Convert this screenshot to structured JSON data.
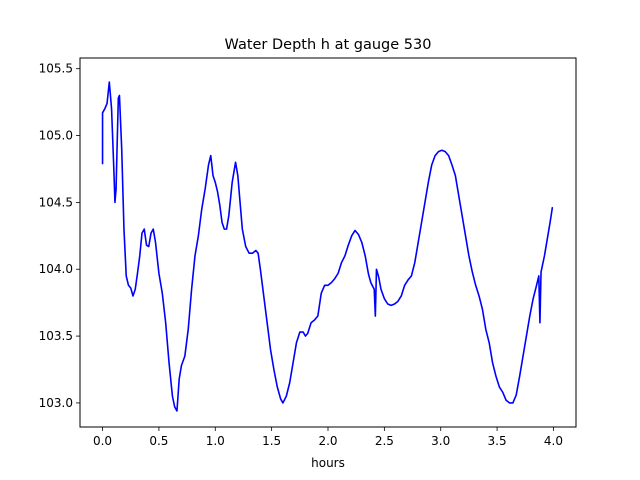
{
  "chart_data": {
    "type": "line",
    "title": "Water Depth h at gauge 530",
    "xlabel": "hours",
    "ylabel": "",
    "xlim": [
      -0.2,
      4.2
    ],
    "ylim": [
      102.82,
      105.58
    ],
    "grid": false,
    "x_ticks": [
      {
        "value": 0.0,
        "label": "0.0"
      },
      {
        "value": 0.5,
        "label": "0.5"
      },
      {
        "value": 1.0,
        "label": "1.0"
      },
      {
        "value": 1.5,
        "label": "1.5"
      },
      {
        "value": 2.0,
        "label": "2.0"
      },
      {
        "value": 2.5,
        "label": "2.5"
      },
      {
        "value": 3.0,
        "label": "3.0"
      },
      {
        "value": 3.5,
        "label": "3.5"
      },
      {
        "value": 4.0,
        "label": "4.0"
      }
    ],
    "y_ticks": [
      {
        "value": 103.0,
        "label": "103.0"
      },
      {
        "value": 103.5,
        "label": "103.5"
      },
      {
        "value": 104.0,
        "label": "104.0"
      },
      {
        "value": 104.5,
        "label": "104.5"
      },
      {
        "value": 105.0,
        "label": "105.0"
      },
      {
        "value": 105.5,
        "label": "105.5"
      }
    ],
    "series": [
      {
        "color": "#0000ff",
        "points": [
          [
            0.0,
            104.79
          ],
          [
            0.0,
            105.17
          ],
          [
            0.02,
            105.2
          ],
          [
            0.04,
            105.24
          ],
          [
            0.06,
            105.4
          ],
          [
            0.08,
            105.2
          ],
          [
            0.1,
            104.75
          ],
          [
            0.11,
            104.5
          ],
          [
            0.12,
            104.6
          ],
          [
            0.13,
            104.95
          ],
          [
            0.14,
            105.28
          ],
          [
            0.15,
            105.3
          ],
          [
            0.17,
            104.9
          ],
          [
            0.19,
            104.3
          ],
          [
            0.21,
            103.95
          ],
          [
            0.23,
            103.88
          ],
          [
            0.25,
            103.86
          ],
          [
            0.27,
            103.8
          ],
          [
            0.29,
            103.85
          ],
          [
            0.31,
            103.97
          ],
          [
            0.33,
            104.1
          ],
          [
            0.35,
            104.27
          ],
          [
            0.37,
            104.3
          ],
          [
            0.39,
            104.18
          ],
          [
            0.41,
            104.17
          ],
          [
            0.43,
            104.27
          ],
          [
            0.45,
            104.3
          ],
          [
            0.47,
            104.2
          ],
          [
            0.5,
            103.97
          ],
          [
            0.53,
            103.82
          ],
          [
            0.56,
            103.6
          ],
          [
            0.59,
            103.3
          ],
          [
            0.62,
            103.05
          ],
          [
            0.64,
            102.97
          ],
          [
            0.66,
            102.94
          ],
          [
            0.68,
            103.18
          ],
          [
            0.7,
            103.28
          ],
          [
            0.73,
            103.35
          ],
          [
            0.76,
            103.55
          ],
          [
            0.79,
            103.85
          ],
          [
            0.82,
            104.1
          ],
          [
            0.85,
            104.25
          ],
          [
            0.88,
            104.45
          ],
          [
            0.91,
            104.6
          ],
          [
            0.94,
            104.78
          ],
          [
            0.96,
            104.85
          ],
          [
            0.98,
            104.7
          ],
          [
            1.0,
            104.65
          ],
          [
            1.02,
            104.58
          ],
          [
            1.04,
            104.48
          ],
          [
            1.06,
            104.35
          ],
          [
            1.08,
            104.3
          ],
          [
            1.1,
            104.3
          ],
          [
            1.12,
            104.4
          ],
          [
            1.15,
            104.65
          ],
          [
            1.18,
            104.8
          ],
          [
            1.2,
            104.7
          ],
          [
            1.22,
            104.5
          ],
          [
            1.24,
            104.3
          ],
          [
            1.27,
            104.17
          ],
          [
            1.3,
            104.12
          ],
          [
            1.33,
            104.12
          ],
          [
            1.36,
            104.14
          ],
          [
            1.38,
            104.12
          ],
          [
            1.4,
            104.0
          ],
          [
            1.43,
            103.8
          ],
          [
            1.46,
            103.6
          ],
          [
            1.49,
            103.4
          ],
          [
            1.52,
            103.25
          ],
          [
            1.55,
            103.12
          ],
          [
            1.58,
            103.03
          ],
          [
            1.6,
            103.0
          ],
          [
            1.63,
            103.05
          ],
          [
            1.66,
            103.15
          ],
          [
            1.69,
            103.3
          ],
          [
            1.72,
            103.45
          ],
          [
            1.75,
            103.53
          ],
          [
            1.78,
            103.53
          ],
          [
            1.8,
            103.5
          ],
          [
            1.82,
            103.52
          ],
          [
            1.85,
            103.6
          ],
          [
            1.88,
            103.62
          ],
          [
            1.91,
            103.65
          ],
          [
            1.94,
            103.82
          ],
          [
            1.97,
            103.88
          ],
          [
            2.0,
            103.88
          ],
          [
            2.03,
            103.9
          ],
          [
            2.06,
            103.93
          ],
          [
            2.09,
            103.97
          ],
          [
            2.12,
            104.05
          ],
          [
            2.15,
            104.1
          ],
          [
            2.18,
            104.18
          ],
          [
            2.21,
            104.25
          ],
          [
            2.24,
            104.29
          ],
          [
            2.27,
            104.26
          ],
          [
            2.3,
            104.2
          ],
          [
            2.33,
            104.1
          ],
          [
            2.36,
            103.96
          ],
          [
            2.38,
            103.9
          ],
          [
            2.41,
            103.85
          ],
          [
            2.42,
            103.65
          ],
          [
            2.43,
            104.0
          ],
          [
            2.45,
            103.94
          ],
          [
            2.47,
            103.85
          ],
          [
            2.5,
            103.78
          ],
          [
            2.53,
            103.74
          ],
          [
            2.56,
            103.73
          ],
          [
            2.59,
            103.74
          ],
          [
            2.62,
            103.76
          ],
          [
            2.65,
            103.8
          ],
          [
            2.68,
            103.88
          ],
          [
            2.71,
            103.92
          ],
          [
            2.74,
            103.95
          ],
          [
            2.77,
            104.05
          ],
          [
            2.8,
            104.2
          ],
          [
            2.83,
            104.35
          ],
          [
            2.86,
            104.5
          ],
          [
            2.89,
            104.65
          ],
          [
            2.92,
            104.78
          ],
          [
            2.95,
            104.85
          ],
          [
            2.98,
            104.88
          ],
          [
            3.01,
            104.89
          ],
          [
            3.04,
            104.88
          ],
          [
            3.07,
            104.85
          ],
          [
            3.1,
            104.78
          ],
          [
            3.13,
            104.7
          ],
          [
            3.16,
            104.55
          ],
          [
            3.19,
            104.4
          ],
          [
            3.22,
            104.25
          ],
          [
            3.25,
            104.1
          ],
          [
            3.28,
            103.98
          ],
          [
            3.31,
            103.88
          ],
          [
            3.34,
            103.8
          ],
          [
            3.37,
            103.7
          ],
          [
            3.4,
            103.55
          ],
          [
            3.43,
            103.45
          ],
          [
            3.46,
            103.3
          ],
          [
            3.49,
            103.2
          ],
          [
            3.52,
            103.12
          ],
          [
            3.55,
            103.08
          ],
          [
            3.58,
            103.02
          ],
          [
            3.61,
            103.0
          ],
          [
            3.64,
            103.0
          ],
          [
            3.67,
            103.06
          ],
          [
            3.7,
            103.2
          ],
          [
            3.73,
            103.35
          ],
          [
            3.76,
            103.5
          ],
          [
            3.79,
            103.65
          ],
          [
            3.82,
            103.78
          ],
          [
            3.85,
            103.88
          ],
          [
            3.87,
            103.95
          ],
          [
            3.88,
            103.6
          ],
          [
            3.89,
            103.98
          ],
          [
            3.92,
            104.1
          ],
          [
            3.95,
            104.25
          ],
          [
            3.97,
            104.35
          ],
          [
            3.99,
            104.46
          ]
        ]
      }
    ]
  }
}
